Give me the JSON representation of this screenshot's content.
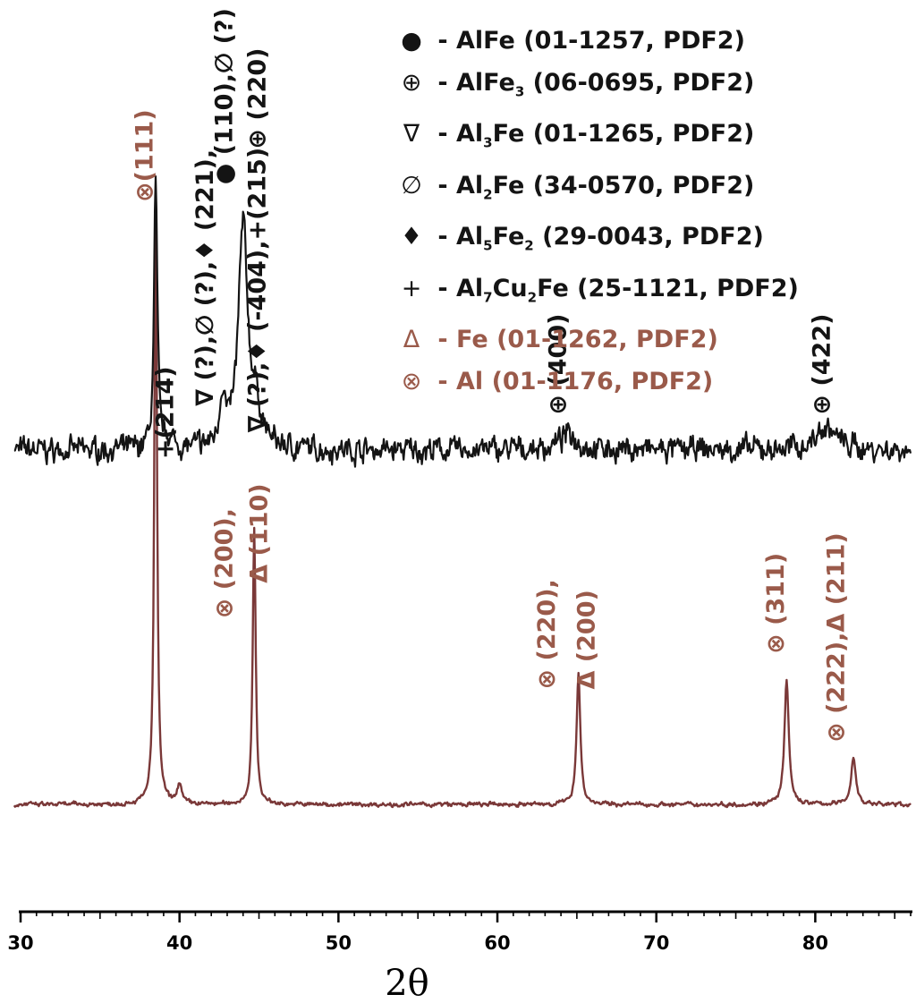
{
  "chart_data": {
    "type": "line",
    "title": "",
    "xlabel": "2θ",
    "ylabel": "",
    "xlim": [
      30,
      86
    ],
    "ylim": [
      0,
      100
    ],
    "x_ticks": [
      30,
      40,
      50,
      60,
      70,
      80
    ],
    "grid": false,
    "legend_position": "top-right",
    "colors": {
      "upper": "#141414",
      "lower": "#7a3838",
      "red_text": "#9a5a4a"
    },
    "legend": [
      {
        "symbol": "●",
        "name": "AlFe",
        "ref": "(01-1257, PDF2)",
        "color": "upper"
      },
      {
        "symbol": "⊕",
        "name": "AlFe3",
        "ref": "(06-0695, PDF2)",
        "color": "upper"
      },
      {
        "symbol": "∇",
        "name": "Al3Fe",
        "ref": "(01-1265, PDF2)",
        "color": "upper"
      },
      {
        "symbol": "∅",
        "name": "Al2Fe",
        "ref": "(34-0570, PDF2)",
        "color": "upper"
      },
      {
        "symbol": "♦",
        "name": "Al5Fe2",
        "ref": "(29-0043, PDF2)",
        "color": "upper"
      },
      {
        "symbol": "+",
        "name": "Al7Cu2Fe",
        "ref": "(25-1121, PDF2)",
        "color": "upper"
      },
      {
        "symbol": "Δ",
        "name": "Fe",
        "ref": "(01-1262, PDF2)",
        "color": "red"
      },
      {
        "symbol": "⊗",
        "name": "Al",
        "ref": "(01-1176, PDF2)",
        "color": "red"
      }
    ],
    "series": [
      {
        "baseline": 52,
        "noise": 1.2,
        "peaks": [
          [
            38.5,
            30,
            0.12
          ],
          [
            39.3,
            1.2,
            0.3
          ],
          [
            42.7,
            6,
            0.2
          ],
          [
            44.0,
            25,
            0.35
          ],
          [
            44.8,
            4,
            0.4
          ],
          [
            64.5,
            1.8,
            0.7
          ],
          [
            80.7,
            2.6,
            0.8
          ]
        ]
      },
      {
        "baseline": 12,
        "noise": 0.22,
        "peaks": [
          [
            38.5,
            68,
            0.1
          ],
          [
            40.0,
            2.4,
            0.15
          ],
          [
            44.7,
            31,
            0.11
          ],
          [
            65.1,
            15,
            0.14
          ],
          [
            78.2,
            14,
            0.16
          ],
          [
            82.4,
            5.3,
            0.18
          ]
        ]
      }
    ],
    "annotations": [
      {
        "text": "⊗(111)",
        "x": 38.3,
        "y": 80,
        "color": "red"
      },
      {
        "text": "+(214)",
        "x": 39.6,
        "y": 51,
        "color": "upper"
      },
      {
        "text": "∇ (?),∅ (?),♦ (221),",
        "x": 42.1,
        "y": 57,
        "color": "upper"
      },
      {
        "text": "● (110),∅ (?)",
        "x": 43.3,
        "y": 82,
        "color": "upper"
      },
      {
        "text": "∇ (?),♦ (-404),+(215)",
        "x": 45.4,
        "y": 54,
        "color": "upper"
      },
      {
        "text": "⊕ (220)",
        "x": 45.4,
        "y": 86,
        "color": "upper"
      },
      {
        "text": "⊕ (400)",
        "x": 64.3,
        "y": 56,
        "color": "upper"
      },
      {
        "text": "⊕ (422)",
        "x": 80.9,
        "y": 56,
        "color": "upper"
      },
      {
        "text": "⊗ (200),",
        "x": 43.3,
        "y": 33,
        "color": "red"
      },
      {
        "text": "Δ (110)",
        "x": 45.5,
        "y": 37,
        "color": "red"
      },
      {
        "text": "⊗ (220),",
        "x": 63.6,
        "y": 25,
        "color": "red"
      },
      {
        "text": "Δ (200)",
        "x": 66.1,
        "y": 25,
        "color": "red"
      },
      {
        "text": "⊗ (311)",
        "x": 78.0,
        "y": 29,
        "color": "red"
      },
      {
        "text": "⊗ (222),Δ (211)",
        "x": 81.8,
        "y": 19,
        "color": "red"
      }
    ]
  }
}
